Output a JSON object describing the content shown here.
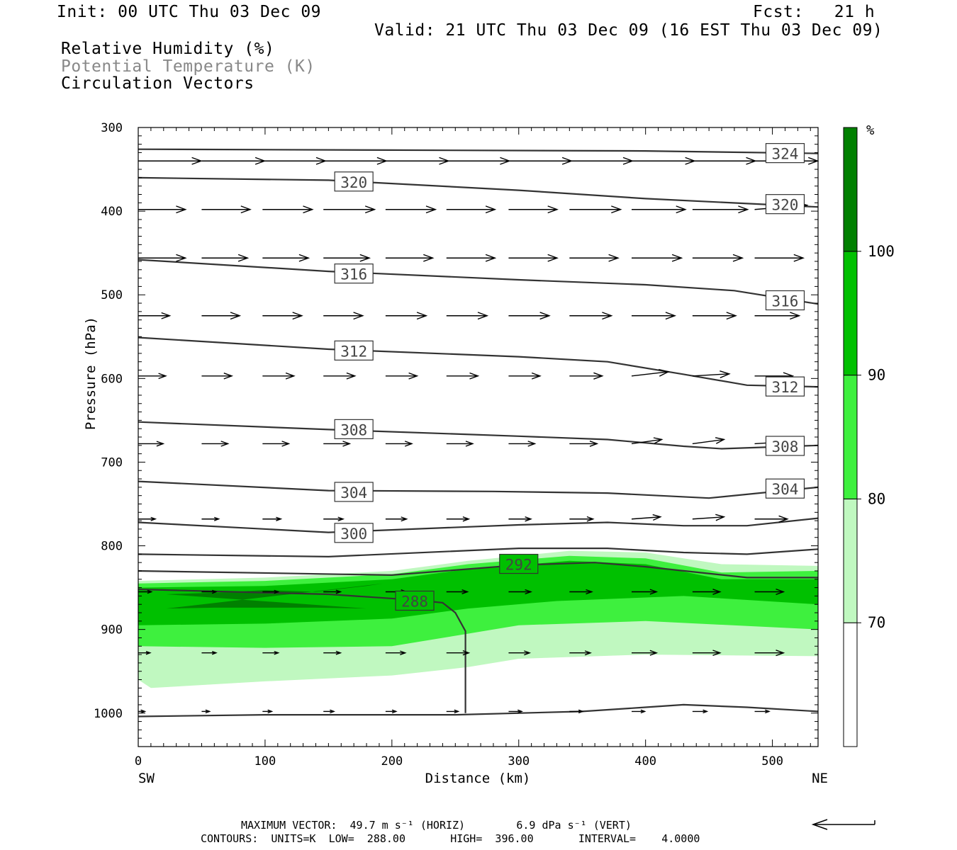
{
  "header": {
    "init": "Init: 00 UTC Thu 03 Dec 09",
    "fcst": "Fcst:   21 h",
    "valid": "Valid: 21 UTC Thu 03 Dec 09 (16 EST Thu 03 Dec 09)",
    "legend_rh": "Relative Humidity (%)",
    "legend_theta": "Potential Temperature (K)",
    "legend_vectors": "Circulation Vectors"
  },
  "footer": {
    "max_vector": "MAXIMUM VECTOR:  49.7 m s⁻¹ (HORIZ)        6.9 dPa s⁻¹ (VERT)",
    "contours": "CONTOURS:  UNITS=K  LOW=  288.00       HIGH=  396.00       INTERVAL=    4.0000"
  },
  "colors": {
    "rh_70_80": "#c0f8c0",
    "rh_80_90": "#3ef03e",
    "rh_90_100": "#00c000",
    "rh_100": "#008000",
    "theta_line": "#333333",
    "vector": "#000000"
  },
  "chart_data": {
    "type": "cross-section",
    "xlabel": "Distance (km)",
    "ylabel": "Pressure (hPa)",
    "xlim": [
      0,
      536
    ],
    "ylim": [
      1040,
      300
    ],
    "x_ticks": [
      0,
      100,
      200,
      300,
      400,
      500
    ],
    "y_ticks": [
      300,
      400,
      500,
      600,
      700,
      800,
      900,
      1000
    ],
    "x_end_labels": [
      "SW",
      "NE"
    ],
    "colorbar": {
      "unit": "%",
      "levels": [
        70,
        80,
        90,
        100
      ],
      "labels": [
        "70",
        "80",
        "90",
        "100"
      ]
    },
    "rh_bands": [
      {
        "level": 70,
        "color_key": "rh_70_80",
        "top": [
          [
            0,
            842
          ],
          [
            100,
            838
          ],
          [
            200,
            830
          ],
          [
            260,
            818
          ],
          [
            340,
            806
          ],
          [
            400,
            808
          ],
          [
            460,
            822
          ],
          [
            536,
            824
          ]
        ],
        "bottom": [
          [
            0,
            960
          ],
          [
            10,
            970
          ],
          [
            100,
            962
          ],
          [
            200,
            955
          ],
          [
            260,
            945
          ],
          [
            300,
            935
          ],
          [
            400,
            930
          ],
          [
            536,
            932
          ]
        ]
      },
      {
        "level": 80,
        "color_key": "rh_80_90",
        "top": [
          [
            0,
            845
          ],
          [
            100,
            842
          ],
          [
            200,
            834
          ],
          [
            260,
            822
          ],
          [
            340,
            812
          ],
          [
            400,
            815
          ],
          [
            460,
            832
          ],
          [
            536,
            830
          ]
        ],
        "bottom": [
          [
            0,
            920
          ],
          [
            100,
            922
          ],
          [
            200,
            920
          ],
          [
            260,
            905
          ],
          [
            300,
            895
          ],
          [
            400,
            890
          ],
          [
            536,
            900
          ]
        ]
      },
      {
        "level": 90,
        "color_key": "rh_90_100",
        "top": [
          [
            0,
            850
          ],
          [
            100,
            848
          ],
          [
            200,
            840
          ],
          [
            260,
            828
          ],
          [
            340,
            818
          ],
          [
            400,
            822
          ],
          [
            460,
            840
          ],
          [
            536,
            840
          ]
        ],
        "bottom": [
          [
            0,
            895
          ],
          [
            100,
            893
          ],
          [
            200,
            887
          ],
          [
            260,
            875
          ],
          [
            330,
            866
          ],
          [
            430,
            860
          ],
          [
            536,
            870
          ]
        ]
      },
      {
        "level": 100,
        "color_key": "rh_100",
        "top": [
          [
            22,
            858
          ],
          [
            60,
            856
          ],
          [
            100,
            853
          ],
          [
            140,
            855
          ],
          [
            180,
            848
          ],
          [
            193,
            845
          ]
        ],
        "bottom": [
          [
            180,
            875
          ],
          [
            140,
            874
          ],
          [
            100,
            874
          ],
          [
            60,
            874
          ],
          [
            22,
            875
          ]
        ]
      }
    ],
    "theta_contours": [
      {
        "label": "324",
        "points": [
          [
            0,
            326
          ],
          [
            200,
            327
          ],
          [
            400,
            328
          ],
          [
            536,
            331
          ]
        ],
        "label_at": [
          510,
          331
        ]
      },
      {
        "label": "320",
        "points": [
          [
            0,
            360
          ],
          [
            150,
            363
          ],
          [
            300,
            375
          ],
          [
            400,
            385
          ],
          [
            536,
            395
          ]
        ],
        "label_at": [
          170,
          365
        ]
      },
      {
        "label": "320",
        "points": [],
        "label_at": [
          510,
          392
        ]
      },
      {
        "label": "316",
        "points": [
          [
            0,
            458
          ],
          [
            150,
            472
          ],
          [
            300,
            482
          ],
          [
            400,
            488
          ],
          [
            470,
            495
          ],
          [
            536,
            511
          ]
        ],
        "label_at": [
          170,
          475
        ]
      },
      {
        "label": "316",
        "points": [],
        "label_at": [
          510,
          507
        ]
      },
      {
        "label": "312",
        "points": [
          [
            0,
            551
          ],
          [
            150,
            565
          ],
          [
            300,
            574
          ],
          [
            370,
            580
          ],
          [
            430,
            595
          ],
          [
            480,
            608
          ],
          [
            536,
            610
          ]
        ],
        "label_at": [
          170,
          567
        ]
      },
      {
        "label": "312",
        "points": [],
        "label_at": [
          510,
          610
        ]
      },
      {
        "label": "308",
        "points": [
          [
            0,
            652
          ],
          [
            150,
            661
          ],
          [
            300,
            669
          ],
          [
            370,
            673
          ],
          [
            430,
            681
          ],
          [
            460,
            684
          ],
          [
            536,
            680
          ]
        ],
        "label_at": [
          170,
          661
        ]
      },
      {
        "label": "308",
        "points": [],
        "label_at": [
          510,
          681
        ]
      },
      {
        "label": "304",
        "points": [
          [
            0,
            723
          ],
          [
            150,
            734
          ],
          [
            280,
            735
          ],
          [
            370,
            737
          ],
          [
            450,
            743
          ],
          [
            536,
            730
          ]
        ],
        "label_at": [
          170,
          736
        ]
      },
      {
        "label": "304",
        "points": [],
        "label_at": [
          510,
          732
        ]
      },
      {
        "label": "300",
        "points": [
          [
            0,
            772
          ],
          [
            150,
            784
          ],
          [
            300,
            775
          ],
          [
            370,
            772
          ],
          [
            430,
            776
          ],
          [
            480,
            776
          ],
          [
            536,
            767
          ]
        ],
        "label_at": [
          170,
          785
        ]
      },
      {
        "label": "",
        "points": [
          [
            0,
            810
          ],
          [
            150,
            813
          ],
          [
            300,
            803
          ],
          [
            370,
            803
          ],
          [
            430,
            808
          ],
          [
            480,
            810
          ],
          [
            536,
            804
          ]
        ],
        "label_at": null
      },
      {
        "label": "292",
        "points": [
          [
            0,
            830
          ],
          [
            200,
            835
          ],
          [
            300,
            823
          ],
          [
            360,
            820
          ],
          [
            400,
            825
          ],
          [
            480,
            838
          ],
          [
            536,
            838
          ]
        ],
        "label_at": [
          300,
          822
        ]
      },
      {
        "label": "288",
        "points": [
          [
            0,
            852
          ],
          [
            150,
            858
          ],
          [
            220,
            865
          ],
          [
            240,
            868
          ],
          [
            250,
            880
          ],
          [
            258,
            902
          ],
          [
            258,
            1000
          ]
        ],
        "label_at": [
          218,
          866
        ]
      },
      {
        "label": "",
        "points": [
          [
            0,
            1004
          ],
          [
            100,
            1002
          ],
          [
            250,
            1002
          ],
          [
            350,
            998
          ],
          [
            400,
            993
          ],
          [
            430,
            990
          ],
          [
            480,
            993
          ],
          [
            536,
            998
          ]
        ],
        "label_at": null
      }
    ],
    "vector_columns_x": [
      0,
      50,
      98,
      146,
      195,
      243,
      292,
      340,
      389,
      437,
      486
    ],
    "vector_rows": [
      {
        "p": 340,
        "u": [
          48,
          48,
          48,
          48,
          48,
          48,
          48,
          48,
          48,
          48,
          48
        ],
        "w": [
          0,
          0,
          0,
          0,
          0,
          0,
          0,
          0,
          0,
          0,
          0
        ]
      },
      {
        "p": 398,
        "u": [
          36,
          37,
          38,
          39,
          38,
          37,
          37,
          39,
          41,
          42,
          40
        ],
        "w": [
          0,
          0,
          0,
          0,
          0,
          0,
          0,
          0,
          0,
          0,
          -2
        ]
      },
      {
        "p": 456,
        "u": [
          36,
          35,
          35,
          35,
          36,
          37,
          37,
          37,
          38,
          38,
          37
        ],
        "w": [
          0,
          0,
          0,
          0,
          0,
          0,
          0,
          0,
          0,
          0,
          0
        ]
      },
      {
        "p": 525,
        "u": [
          24,
          29,
          30,
          30,
          31,
          31,
          31,
          32,
          33,
          33,
          34
        ],
        "w": [
          0,
          0,
          0,
          0,
          0,
          0,
          0,
          0,
          0,
          0,
          0
        ]
      },
      {
        "p": 597,
        "u": [
          21,
          23,
          24,
          24,
          24,
          24,
          24,
          25,
          28,
          28,
          29
        ],
        "w": [
          0,
          0,
          0,
          0,
          0,
          0,
          0,
          0,
          -2,
          -1,
          0
        ]
      },
      {
        "p": 678,
        "u": [
          19,
          20,
          20,
          20,
          20,
          20,
          20,
          21,
          23,
          24,
          26
        ],
        "w": [
          0,
          0,
          0,
          0,
          0,
          0,
          0,
          0,
          -2,
          -2,
          -1
        ]
      },
      {
        "p": 768,
        "u": [
          13,
          13,
          14,
          15,
          16,
          17,
          17,
          18,
          22,
          24,
          25
        ],
        "w": [
          0,
          0,
          0,
          0,
          0,
          0,
          0,
          0,
          -1,
          -1,
          0
        ]
      },
      {
        "p": 855,
        "u": [
          10,
          11,
          12,
          13,
          16,
          16,
          17,
          17,
          19,
          21,
          22
        ],
        "w": [
          0,
          0,
          0,
          0,
          0,
          0,
          0,
          0,
          0,
          0,
          0
        ]
      },
      {
        "p": 928,
        "u": [
          9,
          11,
          12,
          13,
          15,
          17,
          16,
          16,
          19,
          21,
          22
        ],
        "w": [
          0,
          0,
          0,
          0,
          0,
          0,
          0,
          0,
          0,
          0,
          0
        ]
      },
      {
        "p": 998,
        "u": [
          5,
          6,
          7,
          8,
          8,
          9,
          10,
          10,
          10,
          11,
          11
        ],
        "w": [
          0,
          0,
          0,
          0,
          0,
          0,
          0,
          0,
          0,
          0,
          0
        ]
      }
    ],
    "reference_vector": {
      "u": 49.7,
      "w": 6.9
    }
  }
}
